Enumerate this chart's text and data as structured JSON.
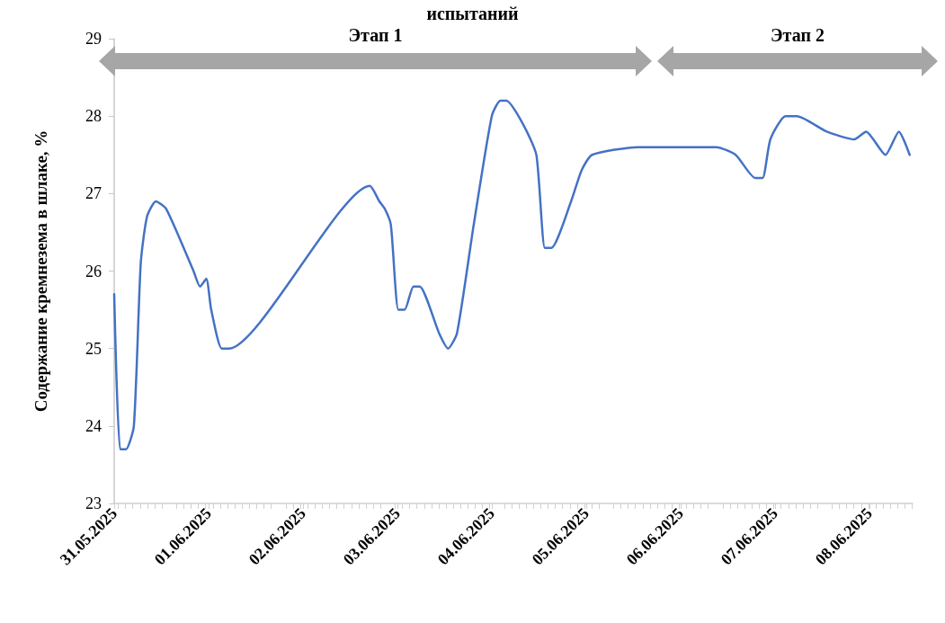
{
  "chart_data": {
    "type": "line",
    "title": "испытаний",
    "ylabel": "Содержание кремнезема в шлаке, %",
    "annotations": [
      "Этап 1",
      "Этап 2"
    ],
    "x": [
      "2025-05-31T00:00",
      "2025-05-31T01:30",
      "2025-05-31T03:00",
      "2025-05-31T05:00",
      "2025-05-31T06:45",
      "2025-05-31T08:20",
      "2025-05-31T10:35",
      "2025-05-31T13:15",
      "2025-05-31T20:10",
      "2025-05-31T21:50",
      "2025-05-31T23:25",
      "2025-06-01T00:40",
      "2025-06-01T03:20",
      "2025-06-01T05:15",
      "2025-06-02T17:00",
      "2025-06-02T19:25",
      "2025-06-02T20:50",
      "2025-06-02T22:20",
      "2025-06-03T00:15",
      "2025-06-03T01:50",
      "2025-06-03T04:05",
      "2025-06-03T05:40",
      "2025-06-03T10:35",
      "2025-06-03T12:55",
      "2025-06-03T15:10",
      "2025-06-03T19:25",
      "2025-06-04T00:00",
      "2025-06-04T02:10",
      "2025-06-04T03:45",
      "2025-06-04T07:55",
      "2025-06-04T11:20",
      "2025-06-04T13:30",
      "2025-06-04T15:10",
      "2025-06-04T20:10",
      "2025-06-04T22:50",
      "2025-06-05T01:30",
      "2025-06-05T13:10",
      "2025-06-06T02:10",
      "2025-06-06T09:05",
      "2025-06-06T14:00",
      "2025-06-06T19:00",
      "2025-06-06T20:50",
      "2025-06-06T22:50",
      "2025-06-07T02:40",
      "2025-06-07T05:35",
      "2025-06-07T13:10",
      "2025-06-07T20:10",
      "2025-06-07T23:10",
      "2025-06-08T04:05",
      "2025-06-08T07:30",
      "2025-06-08T10:15"
    ],
    "series": [
      {
        "color": "#4472c4",
        "values": [
          25.7,
          23.7,
          23.7,
          24.0,
          26.1,
          26.7,
          26.9,
          26.8,
          26.0,
          25.8,
          25.9,
          25.5,
          25.0,
          25.0,
          27.1,
          26.9,
          26.8,
          26.6,
          25.5,
          25.5,
          25.8,
          25.8,
          25.2,
          25.0,
          25.2,
          26.6,
          28.0,
          28.2,
          28.2,
          27.9,
          27.5,
          26.3,
          26.3,
          26.9,
          27.3,
          27.5,
          27.6,
          27.6,
          27.6,
          27.5,
          27.2,
          27.2,
          27.7,
          28.0,
          28.0,
          27.8,
          27.7,
          27.8,
          27.5,
          27.8,
          27.5
        ]
      }
    ],
    "xlim": [
      "2025-05-31T00:00",
      "2025-06-08T11:00"
    ],
    "xticks": [
      {
        "value": "2025-05-31",
        "label": "31.05.2025"
      },
      {
        "value": "2025-06-01",
        "label": "01.06.2025"
      },
      {
        "value": "2025-06-02",
        "label": "02.06.2025"
      },
      {
        "value": "2025-06-03",
        "label": "03.06.2025"
      },
      {
        "value": "2025-06-04",
        "label": "04.06.2025"
      },
      {
        "value": "2025-06-05",
        "label": "05.06.2025"
      },
      {
        "value": "2025-06-06",
        "label": "06.06.2025"
      },
      {
        "value": "2025-06-07",
        "label": "07.06.2025"
      },
      {
        "value": "2025-06-08",
        "label": "08.06.2025"
      }
    ],
    "ylim": [
      23,
      29
    ],
    "yticks": [
      23,
      24,
      25,
      26,
      27,
      28,
      29
    ],
    "grid": false,
    "marker": "none",
    "line_style": "solid"
  }
}
